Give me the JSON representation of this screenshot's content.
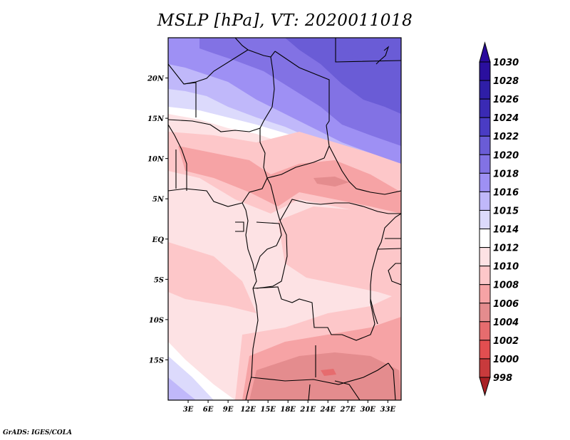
{
  "title": "MSLP [hPa], VT: 2020011018",
  "footer": "GrADS: IGES/COLA",
  "map": {
    "variable": "MSLP",
    "units": "hPa",
    "valid_time": "2020011018",
    "lon_range": [
      0,
      35
    ],
    "lat_range": [
      -20,
      25
    ],
    "lat_ticks": [
      {
        "value": 20,
        "label": "20N"
      },
      {
        "value": 15,
        "label": "15N"
      },
      {
        "value": 10,
        "label": "10N"
      },
      {
        "value": 5,
        "label": "5N"
      },
      {
        "value": 0,
        "label": "EQ"
      },
      {
        "value": -5,
        "label": "5S"
      },
      {
        "value": -10,
        "label": "10S"
      },
      {
        "value": -15,
        "label": "15S"
      }
    ],
    "lon_ticks": [
      {
        "value": 3,
        "label": "3E"
      },
      {
        "value": 6,
        "label": "6E"
      },
      {
        "value": 9,
        "label": "9E"
      },
      {
        "value": 12,
        "label": "12E"
      },
      {
        "value": 15,
        "label": "15E"
      },
      {
        "value": 18,
        "label": "18E"
      },
      {
        "value": 21,
        "label": "21E"
      },
      {
        "value": 24,
        "label": "24E"
      },
      {
        "value": 27,
        "label": "27E"
      },
      {
        "value": 30,
        "label": "30E"
      },
      {
        "value": 33,
        "label": "33E"
      }
    ]
  },
  "colorbar": {
    "levels": [
      {
        "label": "1030",
        "color": "#2a0f9e"
      },
      {
        "label": "1028",
        "color": "#2e1ea6"
      },
      {
        "label": "1026",
        "color": "#3a2ab4"
      },
      {
        "label": "1024",
        "color": "#4a3cc4"
      },
      {
        "label": "1022",
        "color": "#6a5cd6"
      },
      {
        "label": "1020",
        "color": "#8272e4"
      },
      {
        "label": "1018",
        "color": "#9e90f4"
      },
      {
        "label": "1016",
        "color": "#c0b8fa"
      },
      {
        "label": "1015",
        "color": "#dcdafc"
      },
      {
        "label": "1014",
        "color": "#ffffff"
      },
      {
        "label": "1012",
        "color": "#fde2e4"
      },
      {
        "label": "1010",
        "color": "#fdc7c9"
      },
      {
        "label": "1008",
        "color": "#f6a3a5"
      },
      {
        "label": "1006",
        "color": "#e48c8e"
      },
      {
        "label": "1004",
        "color": "#e66c6e"
      },
      {
        "label": "1002",
        "color": "#e24e50"
      },
      {
        "label": "1000",
        "color": "#c83a3c"
      },
      {
        "label": "998",
        "color": "#b02428"
      }
    ],
    "top_arrow_color": "#2a0a9c",
    "bottom_arrow_color": "#a82024"
  }
}
